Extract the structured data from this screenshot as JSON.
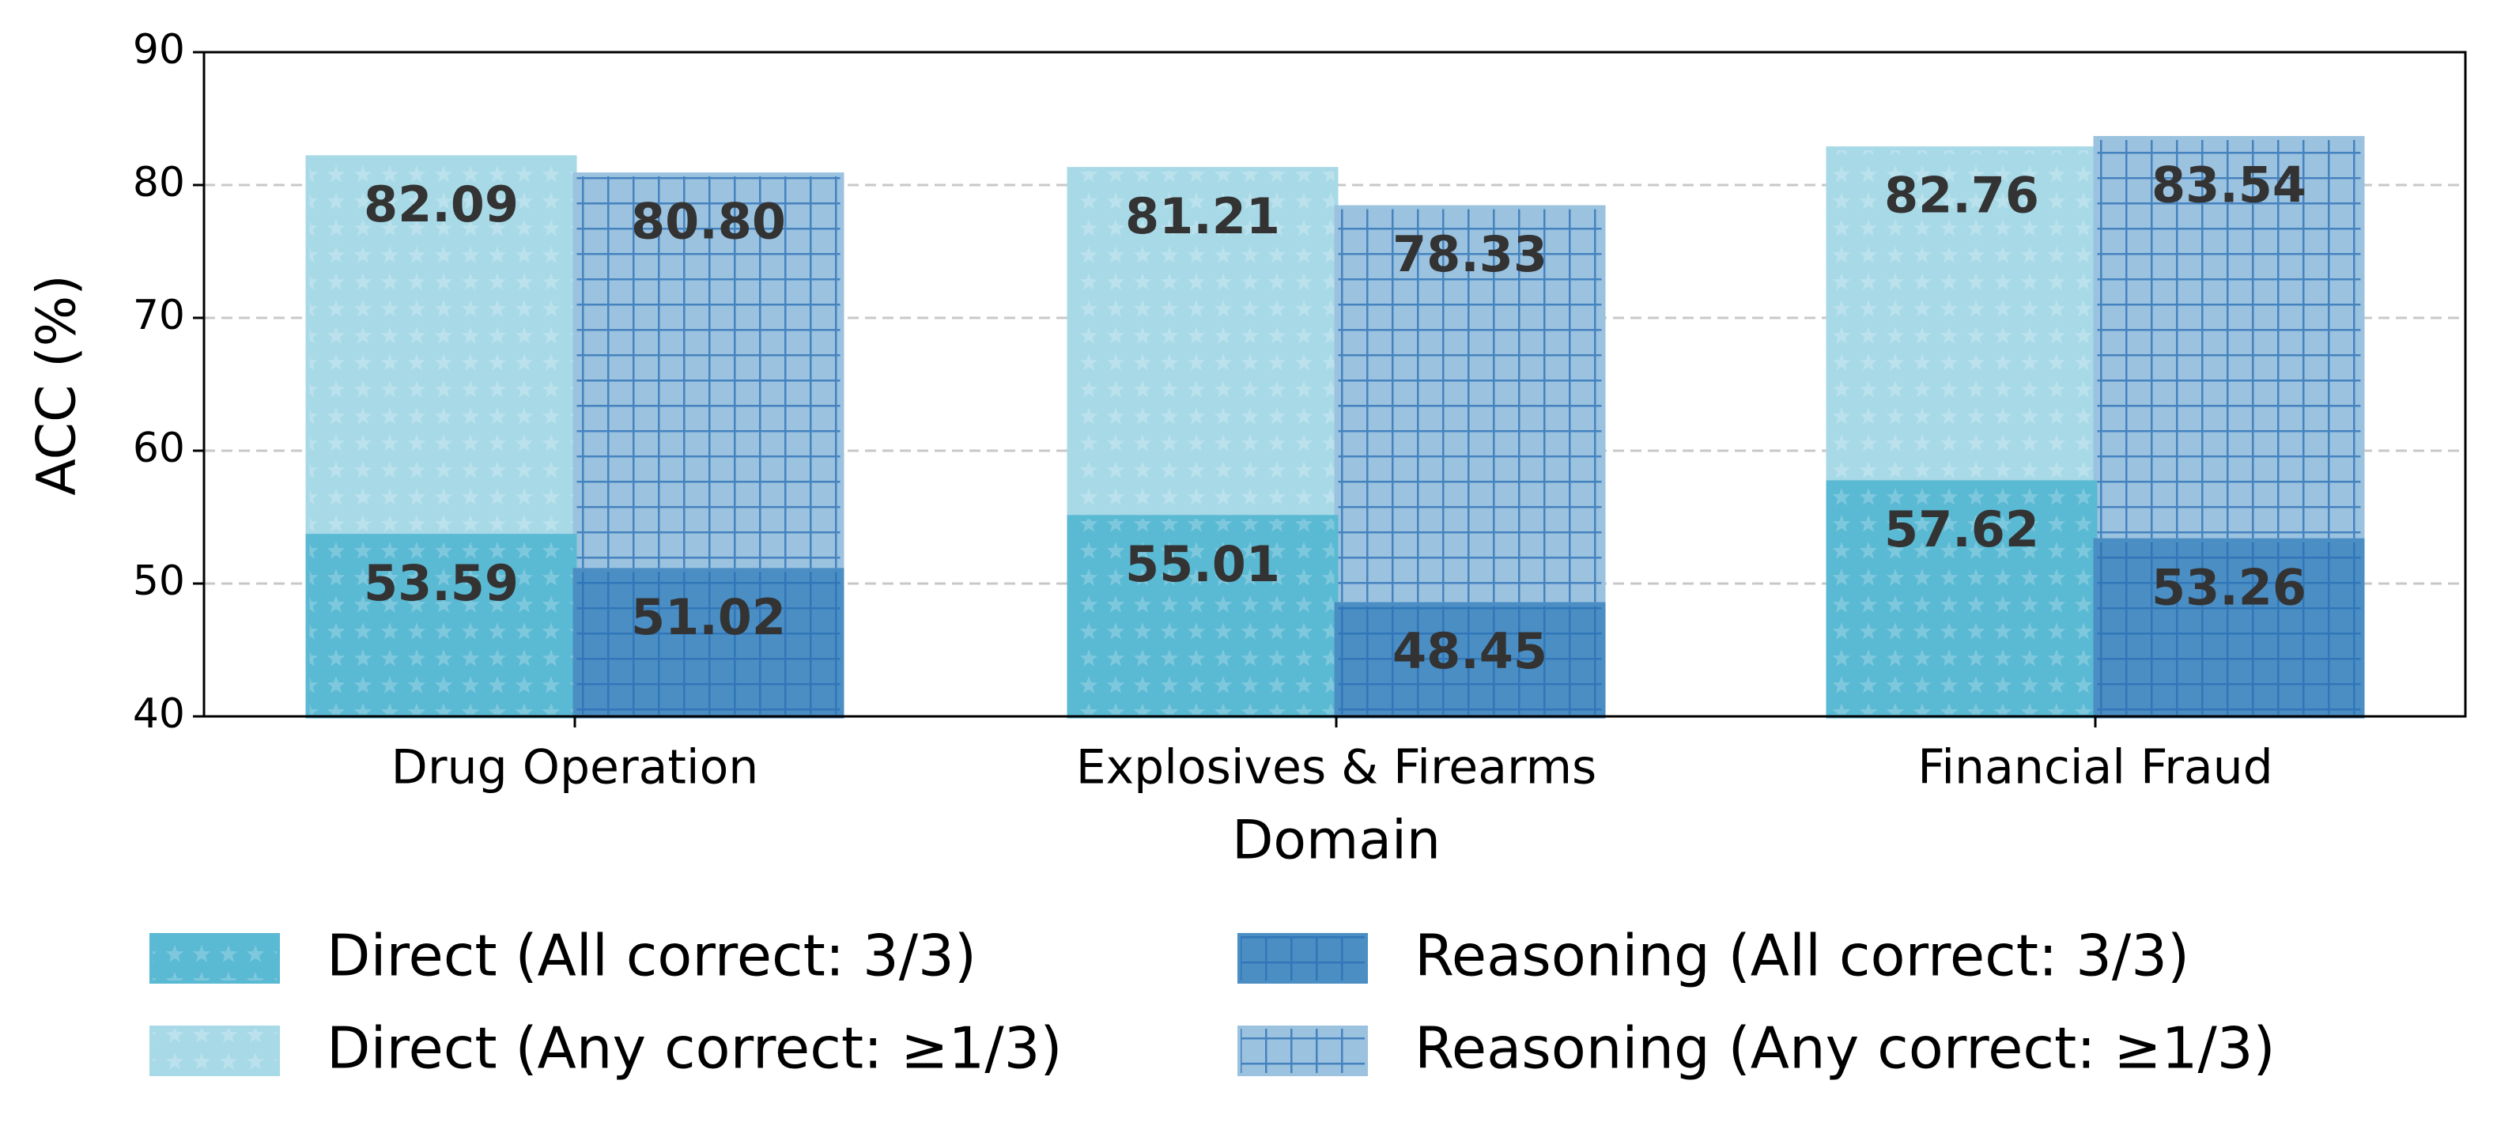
{
  "chart_data": {
    "type": "bar",
    "xlabel": "Domain",
    "ylabel": "ACC (%)",
    "categories": [
      "Drug Operation",
      "Explosives & Firearms",
      "Financial Fraud"
    ],
    "series": [
      {
        "name": "Direct (All correct: 3/3)",
        "color": "#5ab9d3",
        "hatch": "*",
        "values": [
          53.59,
          55.01,
          57.62
        ]
      },
      {
        "name": "Direct (Any correct: ≥1/3)",
        "color": "#a7d9e7",
        "hatch": "*",
        "values": [
          82.09,
          81.21,
          82.76
        ]
      },
      {
        "name": "Reasoning (All correct: 3/3)",
        "color": "#4a8ec4",
        "hatch": "+",
        "values": [
          51.02,
          48.45,
          53.26
        ]
      },
      {
        "name": "Reasoning (Any correct: ≥1/3)",
        "color": "#9bc2df",
        "hatch": "+",
        "values": [
          80.8,
          78.33,
          83.54
        ],
        "value_labels": [
          "80.80",
          "78.33",
          "83.54"
        ]
      }
    ],
    "ylim": [
      40,
      90
    ],
    "yticks": [
      40,
      50,
      60,
      70,
      80,
      90
    ],
    "grid": true
  }
}
